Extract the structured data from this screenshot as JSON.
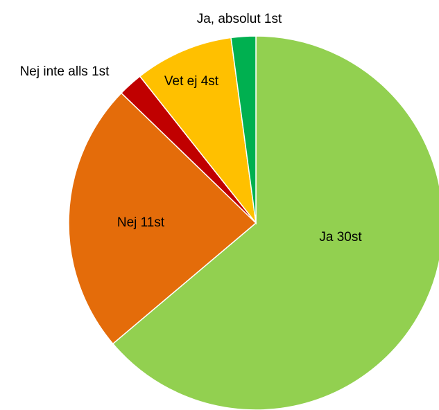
{
  "chart_data": {
    "type": "pie",
    "title": "",
    "slices": [
      {
        "category": "Ja",
        "value": 30,
        "label": "Ja 30st",
        "color": "#92D050"
      },
      {
        "category": "Nej",
        "value": 11,
        "label": "Nej 11st",
        "color": "#E46C0A"
      },
      {
        "category": "Nej inte alls",
        "value": 1,
        "label": "Nej inte alls 1st",
        "color": "#C00000"
      },
      {
        "category": "Vet ej",
        "value": 4,
        "label": "Vet ej 4st",
        "color": "#FFC000"
      },
      {
        "category": "Ja, absolut",
        "value": 1,
        "label": "Ja, absolut 1st",
        "color": "#00B050"
      }
    ],
    "start": "12 o'clock",
    "direction": "clockwise",
    "legend": "none"
  }
}
